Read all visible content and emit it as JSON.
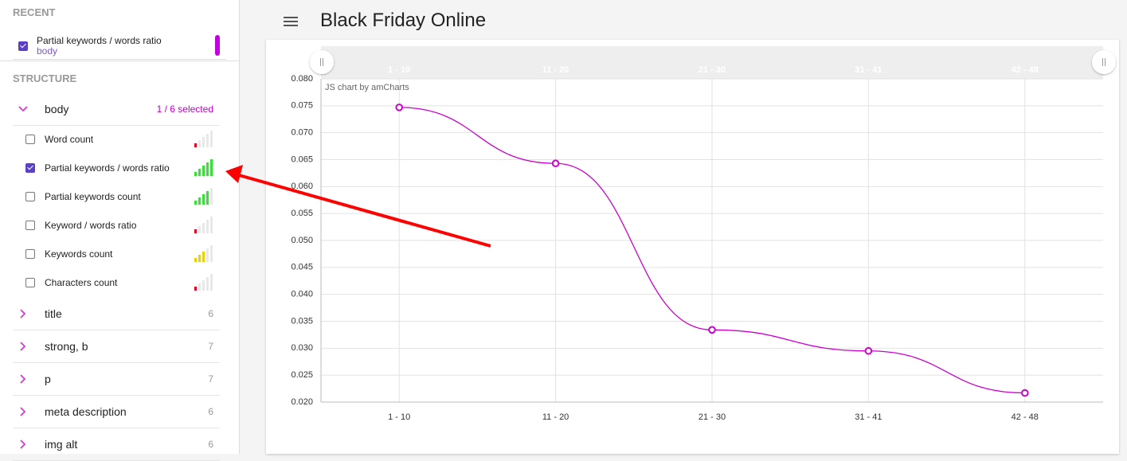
{
  "header": {
    "title": "Black Friday Online"
  },
  "sidebar": {
    "recent_heading": "RECENT",
    "recent": [
      {
        "label": "Partial keywords / words ratio",
        "context": "body",
        "checked": true
      }
    ],
    "structure_heading": "STRUCTURE",
    "groups": [
      {
        "name": "body",
        "summary": "1 / 6 selected",
        "items": [
          {
            "label": "Word count",
            "checked": false,
            "strength": 1,
            "color": "#e0001b"
          },
          {
            "label": "Partial keywords / words ratio",
            "checked": true,
            "strength": 5,
            "color": "#2ee62e"
          },
          {
            "label": "Partial keywords count",
            "checked": false,
            "strength": 4,
            "color": "#2ee62e"
          },
          {
            "label": "Keyword / words ratio",
            "checked": false,
            "strength": 1,
            "color": "#e0001b"
          },
          {
            "label": "Keywords count",
            "checked": false,
            "strength": 3,
            "color": "#e8d200"
          },
          {
            "label": "Characters count",
            "checked": false,
            "strength": 1,
            "color": "#e0001b"
          }
        ]
      },
      {
        "name": "title",
        "count": 6
      },
      {
        "name": "strong, b",
        "count": 7
      },
      {
        "name": "p",
        "count": 7
      },
      {
        "name": "meta description",
        "count": 6
      },
      {
        "name": "img alt",
        "count": 6
      }
    ]
  },
  "chart_data": {
    "type": "line",
    "credit": "JS chart by amCharts",
    "categories": [
      "1 - 10",
      "11 - 20",
      "21 - 30",
      "31 - 41",
      "42 - 48"
    ],
    "series": [
      {
        "color": "#cc00cc",
        "values": [
          0.0747,
          0.0643,
          0.0334,
          0.0295,
          0.0217
        ]
      }
    ],
    "ylim": [
      0.02,
      0.08
    ],
    "yticks": [
      {
        "value": 0.02,
        "label": "0.020"
      },
      0.025,
      {
        "value": 0.03,
        "label": "0.030"
      },
      0.035,
      {
        "value": 0.04,
        "label": "0.040"
      },
      0.045,
      {
        "value": 0.05,
        "label": "0.050"
      },
      0.055,
      {
        "value": 0.06,
        "label": "0.060"
      },
      0.065,
      {
        "value": 0.07,
        "label": "0.070"
      },
      0.075,
      {
        "value": 0.08,
        "label": "0.080"
      }
    ],
    "grid": true
  }
}
